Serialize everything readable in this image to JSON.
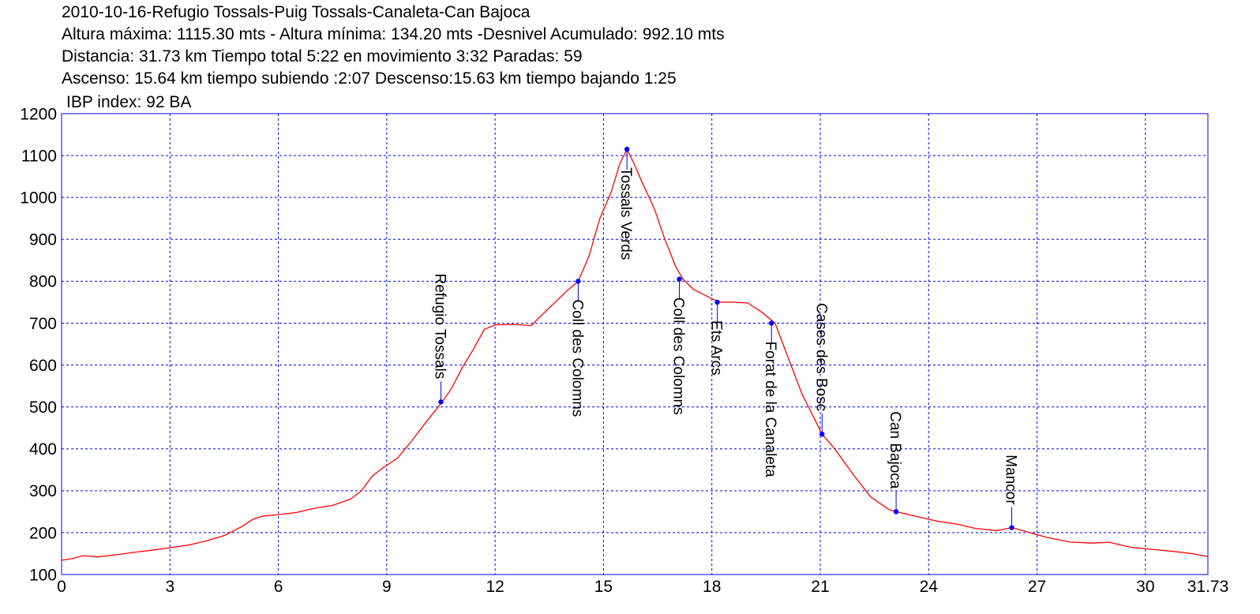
{
  "header": {
    "title": "2010-10-16-Refugio Tossals-Puig Tossals-Canaleta-Can Bajoca",
    "line2": "Altura máxima: 1115.30 mts - Altura mínima: 134.20 mts -Desnivel Acumulado: 992.10 mts",
    "line3": "Distancia: 31.73 km  Tiempo total 5:22  en movimiento 3:32 Paradas: 59",
    "line4": "Ascenso: 15.64 km  tiempo subiendo :2:07  Descenso:15.63 km tiempo bajando 1:25",
    "ibp": "IBP index: 92 BA"
  },
  "colors": {
    "profile_line": "#ff0000",
    "grid": "#0000ff",
    "frame": "#0000ff",
    "waypoint": "#0000ff"
  },
  "chart_data": {
    "type": "line",
    "xlim": [
      0,
      31.73
    ],
    "ylim": [
      100,
      1200
    ],
    "x_ticks": [
      "0",
      "3",
      "6",
      "9",
      "12",
      "15",
      "18",
      "21",
      "24",
      "27",
      "30",
      "31.73"
    ],
    "y_ticks": [
      "100",
      "200",
      "300",
      "400",
      "500",
      "600",
      "700",
      "800",
      "900",
      "1000",
      "1100",
      "1200"
    ],
    "grid": true,
    "series": [
      {
        "x": [
          0,
          0.3,
          0.6,
          1,
          1.5,
          2,
          2.5,
          3,
          3.5,
          4,
          4.5,
          5,
          5.3,
          5.6,
          6,
          6.5,
          7,
          7.5,
          8,
          8.3,
          8.6,
          8.9,
          9.3,
          9.7,
          10.1,
          10.5,
          10.8,
          11.1,
          11.4,
          11.7,
          12,
          12.5,
          13,
          13.3,
          13.6,
          14,
          14.3,
          14.6,
          14.9,
          15.2,
          15.45,
          15.65,
          15.85,
          16.1,
          16.4,
          16.7,
          17.0,
          17.2,
          17.5,
          18.2,
          18.6,
          19,
          19.4,
          19.75,
          20.1,
          20.5,
          21.05,
          21.4,
          21.9,
          22.4,
          22.9,
          23.1,
          23.6,
          24.2,
          24.8,
          25.3,
          25.9,
          26.3,
          26.8,
          27.3,
          27.9,
          28.5,
          29.0,
          29.6,
          30.2,
          30.8,
          31.3,
          31.73
        ],
        "y": [
          134,
          138,
          145,
          142,
          147,
          153,
          158,
          164,
          170,
          180,
          193,
          215,
          232,
          240,
          243,
          248,
          258,
          265,
          280,
          300,
          335,
          355,
          378,
          420,
          465,
          508,
          545,
          595,
          638,
          685,
          696,
          697,
          694,
          720,
          745,
          778,
          800,
          860,
          950,
          1010,
          1080,
          1115,
          1080,
          1030,
          975,
          900,
          835,
          805,
          780,
          750,
          750,
          748,
          725,
          700,
          620,
          530,
          435,
          400,
          340,
          285,
          255,
          250,
          240,
          228,
          220,
          210,
          205,
          212,
          200,
          188,
          178,
          175,
          177,
          165,
          160,
          155,
          150,
          143
        ]
      }
    ],
    "waypoints": [
      {
        "label": "Refugio Tossals",
        "x": 10.5,
        "y": 512,
        "side": "above"
      },
      {
        "label": "Coll des Colomns",
        "x": 14.3,
        "y": 800,
        "side": "below"
      },
      {
        "label": "Tossals Verds",
        "x": 15.65,
        "y": 1115,
        "side": "below"
      },
      {
        "label": "Coll des Colomns",
        "x": 17.1,
        "y": 805,
        "side": "below"
      },
      {
        "label": "Ets Arcs",
        "x": 18.15,
        "y": 750,
        "side": "below"
      },
      {
        "label": "Forat de la Canaleta",
        "x": 19.65,
        "y": 700,
        "side": "below"
      },
      {
        "label": "Cases des Bosc",
        "x": 21.05,
        "y": 435,
        "side": "above"
      },
      {
        "label": "Can Bajoca",
        "x": 23.1,
        "y": 250,
        "side": "above"
      },
      {
        "label": "Mancor",
        "x": 26.3,
        "y": 212,
        "side": "above"
      }
    ]
  }
}
